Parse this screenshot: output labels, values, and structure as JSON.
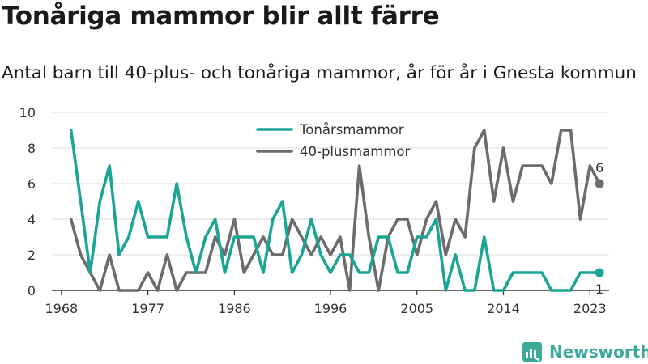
{
  "title": "Tonåriga mammor blir allt färre",
  "subtitle": "Antal barn till 40-plus- och tonåriga mammor, år för år i Gnesta kommun",
  "brand": {
    "name": "Newsworthy"
  },
  "colors": {
    "teen": "#1aa594",
    "forty": "#6c6c6c",
    "grid": "#dddddd",
    "axis": "#333333",
    "text": "#333333"
  },
  "chart_data": {
    "type": "line",
    "x": [
      1969,
      1970,
      1971,
      1972,
      1973,
      1974,
      1975,
      1976,
      1977,
      1978,
      1979,
      1980,
      1981,
      1982,
      1983,
      1984,
      1985,
      1986,
      1987,
      1988,
      1989,
      1990,
      1991,
      1992,
      1993,
      1994,
      1995,
      1996,
      1997,
      1998,
      1999,
      2000,
      2001,
      2002,
      2003,
      2004,
      2005,
      2006,
      2007,
      2008,
      2009,
      2010,
      2011,
      2012,
      2013,
      2014,
      2015,
      2016,
      2017,
      2018,
      2019,
      2020,
      2021,
      2022,
      2023,
      2024
    ],
    "series": [
      {
        "name": "Tonårsmammor",
        "values": [
          9,
          5,
          1,
          5,
          7,
          2,
          3,
          5,
          3,
          3,
          3,
          6,
          3,
          1,
          3,
          4,
          1,
          3,
          3,
          3,
          1,
          4,
          5,
          1,
          2,
          4,
          2,
          1,
          2,
          2,
          1,
          1,
          3,
          3,
          1,
          1,
          3,
          3,
          4,
          0,
          2,
          0,
          0,
          3,
          0,
          0,
          1,
          1,
          1,
          1,
          0,
          0,
          0,
          1,
          1,
          1
        ],
        "end_label": "1"
      },
      {
        "name": "40-plusmammor",
        "values": [
          4,
          2,
          1,
          0,
          2,
          0,
          0,
          0,
          1,
          0,
          2,
          0,
          1,
          1,
          1,
          3,
          2,
          4,
          1,
          2,
          3,
          2,
          2,
          4,
          3,
          2,
          3,
          2,
          3,
          0,
          7,
          3,
          0,
          3,
          4,
          4,
          2,
          4,
          5,
          2,
          4,
          3,
          8,
          9,
          5,
          8,
          5,
          7,
          7,
          7,
          6,
          9,
          9,
          4,
          7,
          6
        ],
        "end_label": "6"
      }
    ],
    "xticks": [
      1968,
      1977,
      1986,
      1996,
      2005,
      2014,
      2023
    ],
    "yticks": [
      0,
      2,
      4,
      6,
      8,
      10
    ],
    "xlim": [
      1967,
      2025
    ],
    "ylim": [
      0,
      10
    ],
    "xlabel": "",
    "ylabel": "",
    "grid": "horizontal",
    "legend_position": "top-center"
  }
}
